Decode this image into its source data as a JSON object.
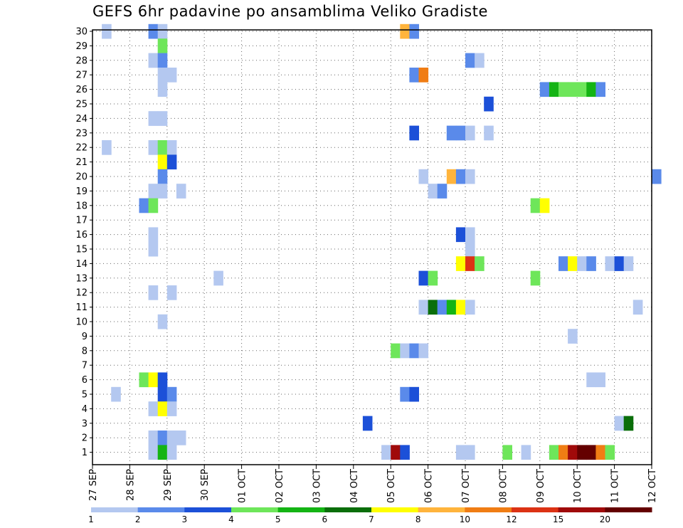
{
  "chart_data": {
    "type": "heatmap",
    "title": "GEFS 6hr padavine po ansamblima Veliko Gradiste",
    "xlabel": "",
    "ylabel": "",
    "x_tick_labels": [
      "27 SEP",
      "28 SEP",
      "29 SEP",
      "30 SEP",
      "01 OCT",
      "02 OCT",
      "03 OCT",
      "04 OCT",
      "05 OCT",
      "06 OCT",
      "07 OCT",
      "08 OCT",
      "09 OCT",
      "10 OCT",
      "11 OCT",
      "12 OCT"
    ],
    "x_range_days": [
      0,
      15
    ],
    "y_tick_labels": [
      "1",
      "2",
      "3",
      "4",
      "5",
      "6",
      "7",
      "8",
      "9",
      "10",
      "11",
      "12",
      "13",
      "14",
      "15",
      "16",
      "17",
      "18",
      "19",
      "20",
      "21",
      "22",
      "23",
      "24",
      "25",
      "26",
      "27",
      "28",
      "29",
      "30"
    ],
    "y_range": [
      1,
      30
    ],
    "grid": true,
    "legend_position": "bottom",
    "legend_labels": [
      "1",
      "2",
      "3",
      "4",
      "5",
      "6",
      "7",
      "8",
      "10",
      "12",
      "15",
      "20"
    ],
    "legend_colors": [
      "#b4c8f0",
      "#5a8aea",
      "#1c50d8",
      "#6ee65a",
      "#14b414",
      "#0a6e0a",
      "#ffff00",
      "#ffb43c",
      "#f07d14",
      "#dc3214",
      "#a00a0a",
      "#640000"
    ],
    "cells": [
      {
        "member": 30,
        "day": 0.25,
        "class": 0
      },
      {
        "member": 30,
        "day": 1.5,
        "class": 1
      },
      {
        "member": 30,
        "day": 1.75,
        "class": 0
      },
      {
        "member": 30,
        "day": 8.25,
        "class": 7
      },
      {
        "member": 30,
        "day": 8.5,
        "class": 1
      },
      {
        "member": 29,
        "day": 1.75,
        "class": 3
      },
      {
        "member": 28,
        "day": 1.5,
        "class": 0
      },
      {
        "member": 28,
        "day": 1.75,
        "class": 1
      },
      {
        "member": 28,
        "day": 10.0,
        "class": 1
      },
      {
        "member": 28,
        "day": 10.25,
        "class": 0
      },
      {
        "member": 27,
        "day": 1.75,
        "class": 0
      },
      {
        "member": 27,
        "day": 2.0,
        "class": 0
      },
      {
        "member": 27,
        "day": 8.5,
        "class": 1
      },
      {
        "member": 27,
        "day": 8.75,
        "class": 8
      },
      {
        "member": 26,
        "day": 1.75,
        "class": 0
      },
      {
        "member": 26,
        "day": 12.0,
        "class": 1
      },
      {
        "member": 26,
        "day": 12.25,
        "class": 4
      },
      {
        "member": 26,
        "day": 12.5,
        "class": 3
      },
      {
        "member": 26,
        "day": 12.75,
        "class": 3
      },
      {
        "member": 26,
        "day": 13.0,
        "class": 3
      },
      {
        "member": 26,
        "day": 13.25,
        "class": 4
      },
      {
        "member": 26,
        "day": 13.5,
        "class": 1
      },
      {
        "member": 25,
        "day": 10.5,
        "class": 2
      },
      {
        "member": 24,
        "day": 1.5,
        "class": 0
      },
      {
        "member": 24,
        "day": 1.75,
        "class": 0
      },
      {
        "member": 23,
        "day": 8.5,
        "class": 2
      },
      {
        "member": 23,
        "day": 9.5,
        "class": 1
      },
      {
        "member": 23,
        "day": 9.75,
        "class": 1
      },
      {
        "member": 23,
        "day": 10.0,
        "class": 0
      },
      {
        "member": 23,
        "day": 10.5,
        "class": 0
      },
      {
        "member": 22,
        "day": 0.25,
        "class": 0
      },
      {
        "member": 22,
        "day": 1.5,
        "class": 0
      },
      {
        "member": 22,
        "day": 1.75,
        "class": 3
      },
      {
        "member": 22,
        "day": 2.0,
        "class": 0
      },
      {
        "member": 21,
        "day": 1.75,
        "class": 6
      },
      {
        "member": 21,
        "day": 2.0,
        "class": 2
      },
      {
        "member": 20,
        "day": 1.75,
        "class": 1
      },
      {
        "member": 20,
        "day": 8.75,
        "class": 0
      },
      {
        "member": 20,
        "day": 9.5,
        "class": 7
      },
      {
        "member": 20,
        "day": 9.75,
        "class": 1
      },
      {
        "member": 20,
        "day": 10.0,
        "class": 0
      },
      {
        "member": 20,
        "day": 15.0,
        "class": 1
      },
      {
        "member": 19,
        "day": 1.5,
        "class": 0
      },
      {
        "member": 19,
        "day": 1.75,
        "class": 0
      },
      {
        "member": 19,
        "day": 2.25,
        "class": 0
      },
      {
        "member": 19,
        "day": 9.0,
        "class": 0
      },
      {
        "member": 19,
        "day": 9.25,
        "class": 1
      },
      {
        "member": 18,
        "day": 1.25,
        "class": 1
      },
      {
        "member": 18,
        "day": 1.5,
        "class": 3
      },
      {
        "member": 18,
        "day": 11.75,
        "class": 3
      },
      {
        "member": 18,
        "day": 12.0,
        "class": 6
      },
      {
        "member": 16,
        "day": 1.5,
        "class": 0
      },
      {
        "member": 16,
        "day": 9.75,
        "class": 2
      },
      {
        "member": 16,
        "day": 10.0,
        "class": 0
      },
      {
        "member": 15,
        "day": 1.5,
        "class": 0
      },
      {
        "member": 15,
        "day": 10.0,
        "class": 0
      },
      {
        "member": 14,
        "day": 9.75,
        "class": 6
      },
      {
        "member": 14,
        "day": 10.0,
        "class": 9
      },
      {
        "member": 14,
        "day": 10.25,
        "class": 3
      },
      {
        "member": 14,
        "day": 12.5,
        "class": 1
      },
      {
        "member": 14,
        "day": 12.75,
        "class": 6
      },
      {
        "member": 14,
        "day": 13.0,
        "class": 0
      },
      {
        "member": 14,
        "day": 13.25,
        "class": 1
      },
      {
        "member": 14,
        "day": 13.75,
        "class": 0
      },
      {
        "member": 14,
        "day": 14.0,
        "class": 2
      },
      {
        "member": 14,
        "day": 14.25,
        "class": 0
      },
      {
        "member": 13,
        "day": 3.25,
        "class": 0
      },
      {
        "member": 13,
        "day": 8.75,
        "class": 2
      },
      {
        "member": 13,
        "day": 9.0,
        "class": 3
      },
      {
        "member": 13,
        "day": 11.75,
        "class": 3
      },
      {
        "member": 12,
        "day": 1.5,
        "class": 0
      },
      {
        "member": 12,
        "day": 2.0,
        "class": 0
      },
      {
        "member": 11,
        "day": 8.75,
        "class": 0
      },
      {
        "member": 11,
        "day": 9.0,
        "class": 5
      },
      {
        "member": 11,
        "day": 9.25,
        "class": 1
      },
      {
        "member": 11,
        "day": 9.5,
        "class": 4
      },
      {
        "member": 11,
        "day": 9.75,
        "class": 6
      },
      {
        "member": 11,
        "day": 10.0,
        "class": 0
      },
      {
        "member": 11,
        "day": 14.5,
        "class": 0
      },
      {
        "member": 10,
        "day": 1.75,
        "class": 0
      },
      {
        "member": 9,
        "day": 12.75,
        "class": 0
      },
      {
        "member": 8,
        "day": 8.0,
        "class": 3
      },
      {
        "member": 8,
        "day": 8.25,
        "class": 0
      },
      {
        "member": 8,
        "day": 8.5,
        "class": 1
      },
      {
        "member": 8,
        "day": 8.75,
        "class": 0
      },
      {
        "member": 6,
        "day": 1.25,
        "class": 3
      },
      {
        "member": 6,
        "day": 1.5,
        "class": 6
      },
      {
        "member": 6,
        "day": 1.75,
        "class": 2
      },
      {
        "member": 6,
        "day": 13.25,
        "class": 0
      },
      {
        "member": 6,
        "day": 13.5,
        "class": 0
      },
      {
        "member": 5,
        "day": 0.5,
        "class": 0
      },
      {
        "member": 5,
        "day": 1.75,
        "class": 2
      },
      {
        "member": 5,
        "day": 2.0,
        "class": 1
      },
      {
        "member": 5,
        "day": 8.25,
        "class": 1
      },
      {
        "member": 5,
        "day": 8.5,
        "class": 2
      },
      {
        "member": 4,
        "day": 1.5,
        "class": 0
      },
      {
        "member": 4,
        "day": 1.75,
        "class": 6
      },
      {
        "member": 4,
        "day": 2.0,
        "class": 0
      },
      {
        "member": 3,
        "day": 7.25,
        "class": 2
      },
      {
        "member": 3,
        "day": 14.0,
        "class": 0
      },
      {
        "member": 3,
        "day": 14.25,
        "class": 5
      },
      {
        "member": 2,
        "day": 1.5,
        "class": 0
      },
      {
        "member": 2,
        "day": 1.75,
        "class": 1
      },
      {
        "member": 2,
        "day": 2.0,
        "class": 0
      },
      {
        "member": 2,
        "day": 2.25,
        "class": 0
      },
      {
        "member": 1,
        "day": 1.5,
        "class": 0
      },
      {
        "member": 1,
        "day": 1.75,
        "class": 4
      },
      {
        "member": 1,
        "day": 2.0,
        "class": 0
      },
      {
        "member": 1,
        "day": 7.75,
        "class": 0
      },
      {
        "member": 1,
        "day": 8.0,
        "class": 10
      },
      {
        "member": 1,
        "day": 8.25,
        "class": 2
      },
      {
        "member": 1,
        "day": 9.75,
        "class": 0
      },
      {
        "member": 1,
        "day": 10.0,
        "class": 0
      },
      {
        "member": 1,
        "day": 11.0,
        "class": 3
      },
      {
        "member": 1,
        "day": 11.5,
        "class": 0
      },
      {
        "member": 1,
        "day": 12.25,
        "class": 3
      },
      {
        "member": 1,
        "day": 12.5,
        "class": 8
      },
      {
        "member": 1,
        "day": 12.75,
        "class": 10
      },
      {
        "member": 1,
        "day": 13.0,
        "class": 11
      },
      {
        "member": 1,
        "day": 13.25,
        "class": 11
      },
      {
        "member": 1,
        "day": 13.5,
        "class": 8
      },
      {
        "member": 1,
        "day": 13.75,
        "class": 3
      }
    ]
  }
}
